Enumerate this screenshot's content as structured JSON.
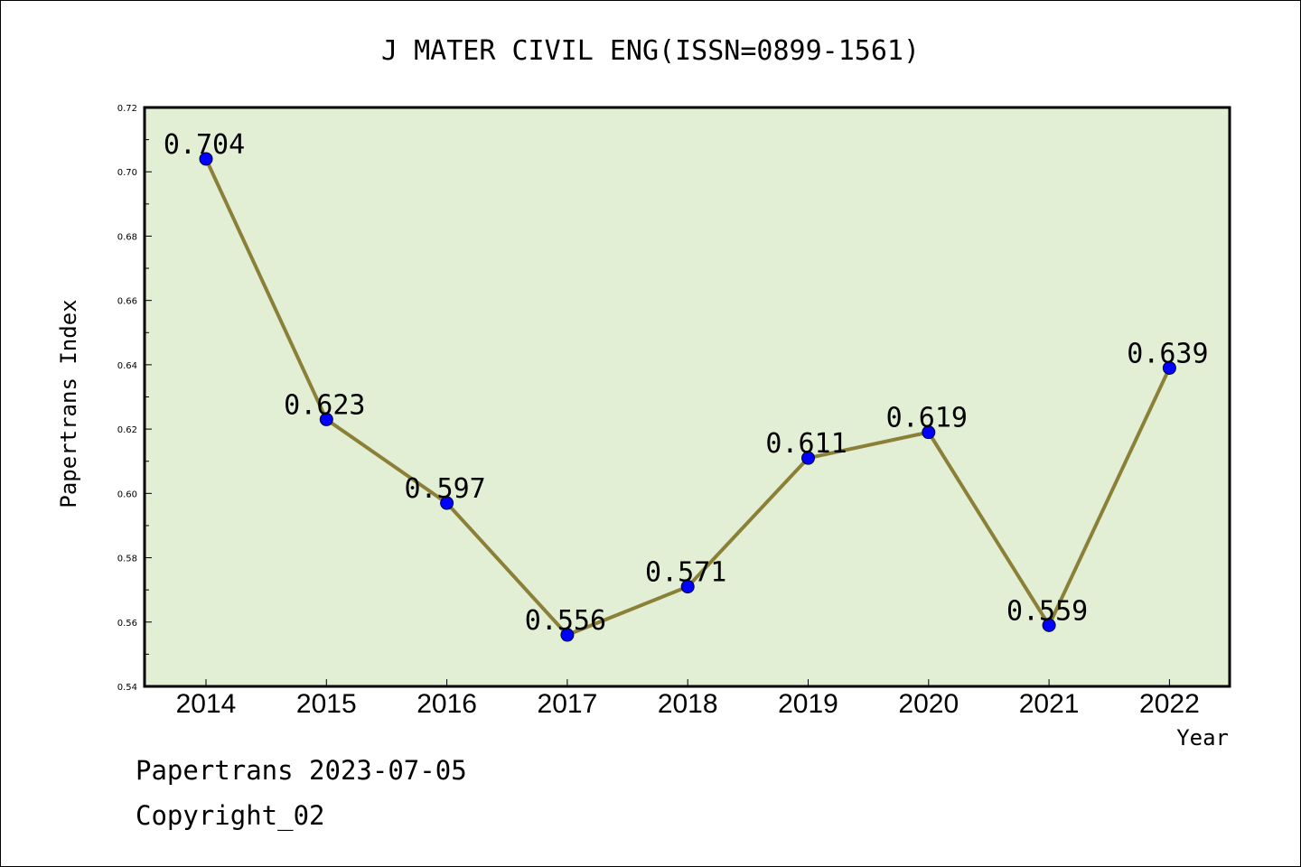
{
  "chart_data": {
    "type": "line",
    "title": "J MATER CIVIL ENG(ISSN=0899-1561)",
    "xlabel": "Year",
    "ylabel": "Papertrans Index",
    "categories": [
      "2014",
      "2015",
      "2016",
      "2017",
      "2018",
      "2019",
      "2020",
      "2021",
      "2022"
    ],
    "values": [
      0.704,
      0.623,
      0.597,
      0.556,
      0.571,
      0.611,
      0.619,
      0.559,
      0.639
    ],
    "data_labels": [
      "0.704",
      "0.623",
      "0.597",
      "0.556",
      "0.571",
      "0.611",
      "0.619",
      "0.559",
      "0.639"
    ],
    "ylim": [
      0.54,
      0.72
    ],
    "yticks": [
      "0.54",
      "0.56",
      "0.58",
      "0.60",
      "0.62",
      "0.64",
      "0.66",
      "0.68",
      "0.70",
      "0.72"
    ],
    "grid": false,
    "legend": "none",
    "colors": {
      "plot_background": "#e2efd5",
      "line": "#8b8038",
      "marker": "#0000ff"
    }
  },
  "footer": {
    "line1": "Papertrans 2023-07-05",
    "line2": "Copyright_02"
  }
}
